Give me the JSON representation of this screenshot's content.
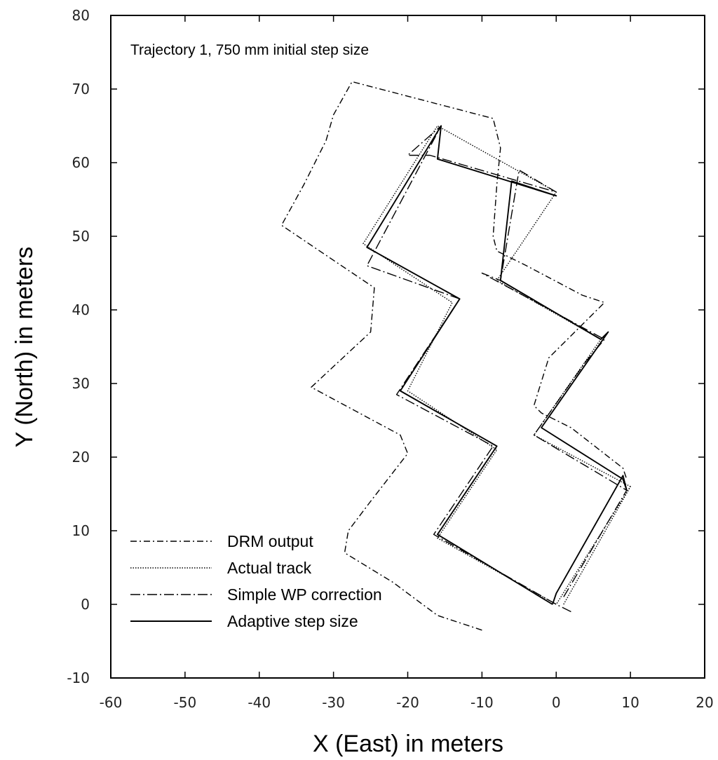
{
  "chart_data": {
    "type": "line",
    "title": "",
    "annotation": "Trajectory 1, 750 mm initial step size",
    "xlabel": "X (East) in meters",
    "ylabel": "Y (North) in meters",
    "xlim": [
      -60,
      20
    ],
    "ylim": [
      -10,
      80
    ],
    "xticks": [
      -60,
      -50,
      -40,
      -30,
      -20,
      -10,
      0,
      10,
      20
    ],
    "yticks": [
      -10,
      0,
      10,
      20,
      30,
      40,
      50,
      60,
      70,
      80
    ],
    "xtick_labels": [
      "-60",
      "-50",
      "-40",
      "-30",
      "-20",
      "-10",
      "0",
      "10",
      "20"
    ],
    "ytick_labels": [
      "-10",
      "0",
      "10",
      "20",
      "30",
      "40",
      "50",
      "60",
      "70",
      "80"
    ],
    "grid": false,
    "legend_position": "bottom-left",
    "series": [
      {
        "name": "DRM output",
        "style": "dash-dot",
        "x": [
          -10,
          -16,
          -22,
          -28.5,
          -28,
          -25,
          -20,
          -21,
          -33,
          -25,
          -24.5,
          -37,
          -34,
          -31,
          -30,
          -27.5,
          -8.5,
          -7.5,
          -8,
          -8.5,
          -8,
          -4,
          3.5,
          6.5,
          -1,
          -3,
          -2,
          2,
          9,
          9.5
        ],
        "y": [
          -3.5,
          -1.5,
          3,
          7,
          10,
          14,
          20.5,
          23,
          29.5,
          37,
          43,
          51.5,
          57,
          63,
          66.5,
          71,
          66,
          62,
          57,
          50,
          48,
          46,
          42,
          41,
          33.5,
          27,
          26,
          24,
          18.5,
          17
        ]
      },
      {
        "name": "Actual track",
        "style": "dotted",
        "x": [
          1,
          10,
          0,
          -16,
          -8,
          -20,
          -14,
          -26,
          -16,
          0,
          -8,
          6,
          -3,
          10
        ],
        "y": [
          0,
          16,
          0,
          9,
          21,
          29,
          41,
          49,
          65,
          56,
          44,
          36,
          23,
          16
        ]
      },
      {
        "name": "Simple WP correction",
        "style": "dash-dot-long",
        "x": [
          2,
          0,
          -16.5,
          -8.5,
          -21.5,
          -13,
          -25.5,
          -15.5,
          -20,
          -17,
          0,
          -5,
          -7.5,
          -10,
          6.5,
          4,
          -3,
          9.5,
          1
        ],
        "y": [
          -1,
          0,
          9.5,
          21.5,
          28.5,
          41.5,
          46,
          65,
          61,
          61,
          56,
          59,
          44,
          45,
          36,
          33,
          23,
          15.5,
          1
        ]
      },
      {
        "name": "Adaptive step size",
        "style": "solid",
        "x": [
          -0.5,
          0,
          9,
          9.5,
          9,
          -2,
          7,
          6,
          -7.5,
          -6,
          0,
          -16,
          -15.5,
          -25.5,
          -13,
          -21,
          -8,
          -16,
          -0.5
        ],
        "y": [
          0,
          1.5,
          17.5,
          15.5,
          17,
          24,
          37,
          36,
          44,
          57.5,
          55.5,
          60.5,
          65,
          48.5,
          41.5,
          29,
          21.5,
          9.5,
          0
        ]
      }
    ]
  }
}
